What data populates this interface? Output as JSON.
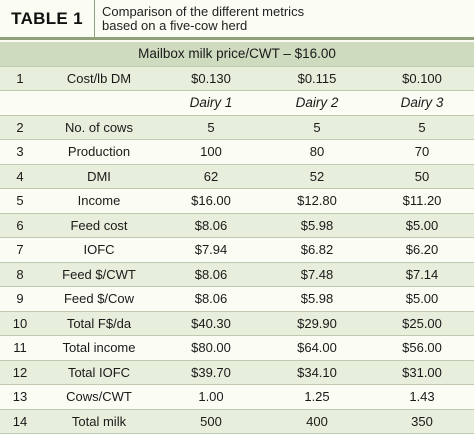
{
  "header": {
    "table_label": "TABLE 1",
    "caption_line1": "Comparison of the different metrics",
    "caption_line2": "based on a five-cow herd"
  },
  "mailbox": "Mailbox milk price/CWT – $16.00",
  "cost_row": {
    "num": "1",
    "label": "Cost/lb DM",
    "values": [
      "$0.130",
      "$0.115",
      "$0.100"
    ]
  },
  "dairies": [
    "Dairy 1",
    "Dairy 2",
    "Dairy 3"
  ],
  "rows": [
    {
      "num": "2",
      "label": "No. of cows",
      "values": [
        "5",
        "5",
        "5"
      ]
    },
    {
      "num": "3",
      "label": "Production",
      "values": [
        "100",
        "80",
        "70"
      ]
    },
    {
      "num": "4",
      "label": "DMI",
      "values": [
        "62",
        "52",
        "50"
      ]
    },
    {
      "num": "5",
      "label": "Income",
      "values": [
        "$16.00",
        "$12.80",
        "$11.20"
      ]
    },
    {
      "num": "6",
      "label": "Feed cost",
      "values": [
        "$8.06",
        "$5.98",
        "$5.00"
      ]
    },
    {
      "num": "7",
      "label": "IOFC",
      "values": [
        "$7.94",
        "$6.82",
        "$6.20"
      ]
    },
    {
      "num": "8",
      "label": "Feed $/CWT",
      "values": [
        "$8.06",
        "$7.48",
        "$7.14"
      ]
    },
    {
      "num": "9",
      "label": "Feed $/Cow",
      "values": [
        "$8.06",
        "$5.98",
        "$5.00"
      ]
    },
    {
      "num": "10",
      "label": "Total F$/da",
      "values": [
        "$40.30",
        "$29.90",
        "$25.00"
      ]
    },
    {
      "num": "11",
      "label": "Total income",
      "values": [
        "$80.00",
        "$64.00",
        "$56.00"
      ]
    },
    {
      "num": "12",
      "label": "Total IOFC",
      "values": [
        "$39.70",
        "$34.10",
        "$31.00"
      ]
    },
    {
      "num": "13",
      "label": "Cows/CWT",
      "values": [
        "1.00",
        "1.25",
        "1.43"
      ]
    },
    {
      "num": "14",
      "label": "Total milk",
      "values": [
        "500",
        "400",
        "350"
      ]
    }
  ]
}
